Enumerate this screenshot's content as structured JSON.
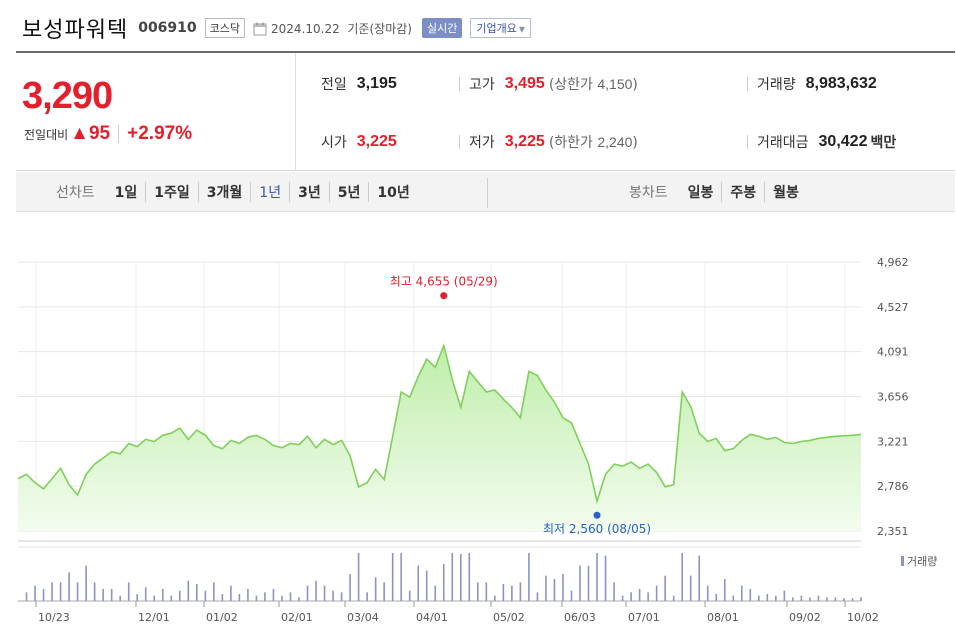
{
  "stock": {
    "name": "보성파워텍",
    "code": "006910",
    "market": "코스닥",
    "base_date": "2024.10.22",
    "base_note": "기준(장마감)",
    "realtime": "실시간",
    "company_overview": "기업개요"
  },
  "quote": {
    "price": "3,290",
    "change_label": "전일대비",
    "change_value": "▲95",
    "change_pct": "+2.97%",
    "prev_close_label": "전일",
    "prev_close": "3,195",
    "open_label": "시가",
    "open": "3,225",
    "high_label": "고가",
    "high": "3,495",
    "upper_limit_label": "상한가",
    "upper_limit": "4,150",
    "low_label": "저가",
    "low": "3,225",
    "lower_limit_label": "하한가",
    "lower_limit": "2,240",
    "volume_label": "거래량",
    "volume": "8,983,632",
    "amount_label": "거래대금",
    "amount": "30,422",
    "amount_unit": "백만"
  },
  "range_tabs": {
    "line_title": "선차트",
    "line_items": [
      "1일",
      "1주일",
      "3개월",
      "1년",
      "3년",
      "5년",
      "10년"
    ],
    "active": "1년",
    "candle_title": "봉차트",
    "candle_items": [
      "일봉",
      "주봉",
      "월봉"
    ]
  },
  "colors": {
    "up": "#e41f2c",
    "line": "#7fcf5a",
    "fill": "#c6efb3",
    "low_marker": "#2563c9",
    "volume_bar": "#8e92c7"
  },
  "chart_data": {
    "type": "area",
    "yticks": [
      "4,962",
      "4,527",
      "4,091",
      "3,656",
      "3,221",
      "2,786",
      "2,351"
    ],
    "ylim": [
      2351,
      4962
    ],
    "xticks": [
      "10/23",
      "12/01",
      "01/02",
      "02/01",
      "03/04",
      "04/01",
      "05/02",
      "06/03",
      "07/01",
      "08/01",
      "09/02",
      "10/02"
    ],
    "x": [
      0,
      1,
      2,
      3,
      4,
      5,
      6,
      7,
      8,
      9,
      10,
      11,
      12,
      13,
      14,
      15,
      16,
      17,
      18,
      19,
      20,
      21,
      22,
      23,
      24,
      25,
      26,
      27,
      28,
      29,
      30,
      31,
      32,
      33,
      34,
      35,
      36,
      37,
      38,
      39,
      40,
      41,
      42,
      43,
      44,
      45,
      46,
      47,
      48,
      49,
      50,
      51,
      52,
      53,
      54,
      55,
      56,
      57,
      58,
      59,
      60,
      61,
      62,
      63,
      64,
      65,
      66,
      67,
      68,
      69,
      70,
      71,
      72,
      73,
      74,
      75,
      76,
      77,
      78,
      79,
      80,
      81,
      82,
      83,
      84,
      85,
      86,
      87,
      88,
      89,
      90,
      91,
      92,
      93,
      94,
      95,
      96,
      97,
      98,
      99
    ],
    "values": [
      2860,
      2900,
      2820,
      2760,
      2860,
      2960,
      2800,
      2700,
      2900,
      3000,
      3060,
      3120,
      3100,
      3200,
      3170,
      3240,
      3220,
      3280,
      3300,
      3350,
      3240,
      3330,
      3280,
      3180,
      3150,
      3230,
      3200,
      3260,
      3280,
      3240,
      3180,
      3160,
      3200,
      3190,
      3270,
      3160,
      3240,
      3190,
      3230,
      3080,
      2780,
      2820,
      2950,
      2850,
      3270,
      3700,
      3650,
      3850,
      4020,
      3940,
      4150,
      3820,
      3550,
      3900,
      3800,
      3700,
      3720,
      3630,
      3550,
      3450,
      3900,
      3860,
      3720,
      3600,
      3450,
      3400,
      3200,
      3000,
      2640,
      2900,
      3000,
      2980,
      3020,
      2960,
      3000,
      2920,
      2780,
      2800,
      3700,
      3560,
      3300,
      3220,
      3250,
      3130,
      3150,
      3230,
      3290,
      3270,
      3240,
      3260,
      3210,
      3200,
      3220,
      3230,
      3250,
      3260,
      3270,
      3275,
      3280,
      3290
    ],
    "high_label": "최고 4,655 (05/29)",
    "low_label": "최저 2,560 (08/05)",
    "volume_label": "거래량"
  }
}
